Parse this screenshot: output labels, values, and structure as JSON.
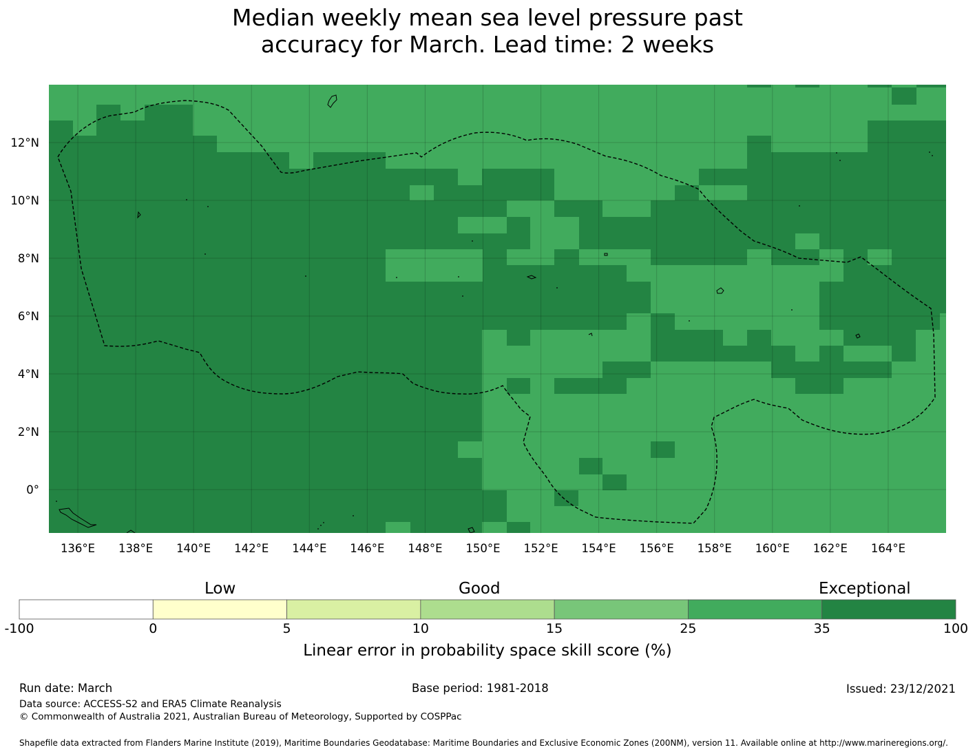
{
  "title": {
    "line1": "Median weekly mean sea level pressure past",
    "line2": "accuracy for March. Lead time: 2 weeks"
  },
  "map": {
    "lon_labels": [
      "136°E",
      "138°E",
      "140°E",
      "142°E",
      "144°E",
      "146°E",
      "148°E",
      "150°E",
      "152°E",
      "154°E",
      "156°E",
      "158°E",
      "160°E",
      "162°E",
      "164°E"
    ],
    "lon_values": [
      136,
      138,
      140,
      142,
      144,
      146,
      148,
      150,
      152,
      154,
      156,
      158,
      160,
      162,
      164
    ],
    "lat_labels": [
      "12°N",
      "10°N",
      "8°N",
      "6°N",
      "4°N",
      "2°N",
      "0°"
    ],
    "lat_values": [
      12,
      10,
      8,
      6,
      4,
      2,
      0
    ],
    "lon_range": [
      135,
      166
    ],
    "lat_range": [
      -1.5,
      14
    ],
    "colors": {
      "exceptional": "#238443",
      "good": "#41ab5d",
      "border": "#000000"
    }
  },
  "colorbar": {
    "categories": [
      {
        "label": "Low"
      },
      {
        "label": "Good"
      },
      {
        "label": "Exceptional"
      }
    ],
    "bins": [
      {
        "from": "-100",
        "to": "0",
        "color": "#ffffff"
      },
      {
        "from": "0",
        "to": "5",
        "color": "#ffffcc"
      },
      {
        "from": "5",
        "to": "10",
        "color": "#d9f0a3"
      },
      {
        "from": "10",
        "to": "15",
        "color": "#addd8e"
      },
      {
        "from": "15",
        "to": "25",
        "color": "#78c679"
      },
      {
        "from": "25",
        "to": "35",
        "color": "#41ab5d"
      },
      {
        "from": "35",
        "to": "100",
        "color": "#238443"
      }
    ],
    "tick_labels": [
      "-100",
      "0",
      "5",
      "10",
      "15",
      "25",
      "35",
      "100"
    ],
    "title": "Linear error in probability space skill score (%)"
  },
  "footer": {
    "run_date": "Run date: March",
    "base_period": "Base period: 1981-2018",
    "issued": "Issued: 23/12/2021",
    "data_source": "Data source: ACCESS-S2 and ERA5 Climate Reanalysis",
    "copyright": "© Commonwealth of Australia 2021, Australian Bureau of Meteorology, Supported by COSPPac",
    "shapefile": "Shapefile data extracted from Flanders Marine Institute (2019), Maritime Boundaries Geodatabase: Maritime Boundaries and Exclusive Economic Zones (200NM), version 11. Available online at http://www.marineregions.org/."
  }
}
